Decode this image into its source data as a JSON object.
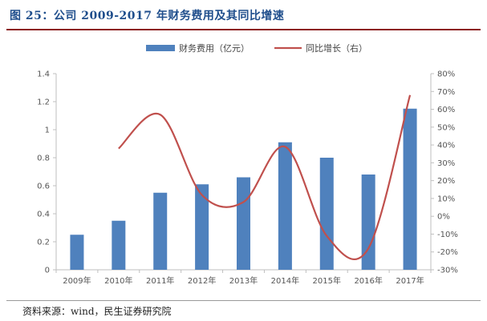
{
  "title": "图 25：公司 2009-2017 年财务费用及其同比增速",
  "source": "资料来源：wind，民生证券研究院",
  "colors": {
    "bar": "#4f81bd",
    "line": "#c0504d",
    "title": "#1f4e8c",
    "rule": "#8c1d1d"
  },
  "chart_data": {
    "type": "bar",
    "categories": [
      "2009年",
      "2010年",
      "2011年",
      "2012年",
      "2013年",
      "2014年",
      "2015年",
      "2016年",
      "2017年"
    ],
    "series": [
      {
        "name": "财务费用（亿元）",
        "type": "bar",
        "axis": "left",
        "values": [
          0.25,
          0.35,
          0.55,
          0.61,
          0.66,
          0.91,
          0.8,
          0.68,
          1.15
        ]
      },
      {
        "name": "同比增长（右）",
        "type": "line",
        "axis": "right",
        "values": [
          null,
          0.38,
          0.57,
          0.12,
          0.08,
          0.39,
          -0.11,
          -0.18,
          0.68
        ]
      }
    ],
    "y_left": {
      "min": 0,
      "max": 1.4,
      "ticks": [
        0,
        0.2,
        0.4,
        0.6,
        0.8,
        1,
        1.2,
        1.4
      ],
      "tick_labels": [
        "0",
        "0.2",
        "0.4",
        "0.6",
        "0.8",
        "1",
        "1.2",
        "1.4"
      ]
    },
    "y_right": {
      "min": -0.3,
      "max": 0.8,
      "ticks": [
        -0.3,
        -0.2,
        -0.1,
        0,
        0.1,
        0.2,
        0.3,
        0.4,
        0.5,
        0.6,
        0.7,
        0.8
      ],
      "tick_labels": [
        "-30%",
        "-20%",
        "-10%",
        "0%",
        "10%",
        "20%",
        "30%",
        "40%",
        "50%",
        "60%",
        "70%",
        "80%"
      ]
    },
    "grid": false,
    "legend": "top-center"
  }
}
